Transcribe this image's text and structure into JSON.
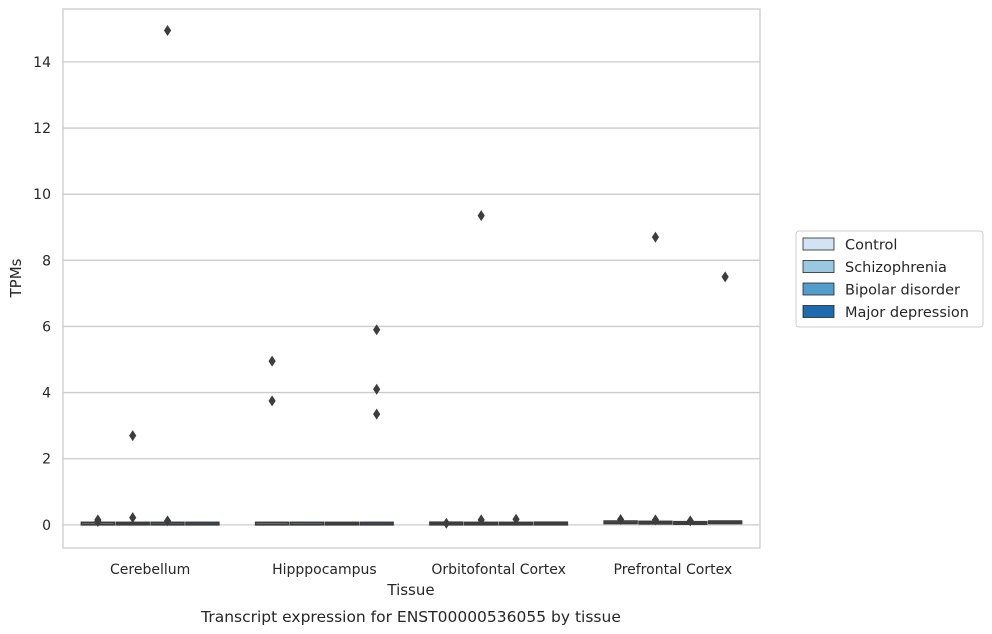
{
  "chart_data": {
    "type": "box",
    "title": "",
    "caption": "Transcript expression for ENST00000536055 by tissue",
    "xlabel": "Tissue",
    "ylabel": "TPMs",
    "ylim": [
      -0.7,
      15.6
    ],
    "yticks": [
      0,
      2,
      4,
      6,
      8,
      10,
      12,
      14
    ],
    "ytick_labels": [
      "0",
      "2",
      "4",
      "6",
      "8",
      "10",
      "12",
      "14"
    ],
    "grid": "horizontal",
    "legend_position": "right",
    "categories": [
      "Cerebellum",
      "Hipppocampus",
      "Orbitofontal Cortex",
      "Prefrontal Cortex"
    ],
    "series": [
      {
        "name": "Control",
        "color": "#d2e3f3",
        "boxes": [
          {
            "q1": 0.0,
            "median": 0.02,
            "q3": 0.05,
            "outliers": [
              0.15,
              0.1
            ]
          },
          {
            "q1": 0.0,
            "median": 0.02,
            "q3": 0.04,
            "outliers": [
              4.95,
              3.75
            ]
          },
          {
            "q1": 0.0,
            "median": 0.04,
            "q3": 0.08,
            "outliers": [
              0.05
            ]
          },
          {
            "q1": 0.04,
            "median": 0.07,
            "q3": 0.11,
            "outliers": [
              0.16
            ]
          }
        ]
      },
      {
        "name": "Schizophrenia",
        "color": "#9ac8e0",
        "boxes": [
          {
            "q1": 0.0,
            "median": 0.03,
            "q3": 0.06,
            "outliers": [
              2.7,
              0.22
            ]
          },
          {
            "q1": 0.0,
            "median": 0.02,
            "q3": 0.04,
            "outliers": []
          },
          {
            "q1": 0.0,
            "median": 0.03,
            "q3": 0.07,
            "outliers": [
              9.35,
              0.15
            ]
          },
          {
            "q1": 0.03,
            "median": 0.07,
            "q3": 0.1,
            "outliers": [
              8.7,
              0.15
            ]
          }
        ]
      },
      {
        "name": "Bipolar disorder",
        "color": "#529dcc",
        "boxes": [
          {
            "q1": 0.0,
            "median": 0.02,
            "q3": 0.04,
            "outliers": [
              14.95,
              0.12
            ]
          },
          {
            "q1": 0.0,
            "median": 0.03,
            "q3": 0.06,
            "outliers": []
          },
          {
            "q1": 0.0,
            "median": 0.03,
            "q3": 0.07,
            "outliers": [
              0.17
            ]
          },
          {
            "q1": 0.02,
            "median": 0.05,
            "q3": 0.08,
            "outliers": [
              0.12
            ]
          }
        ]
      },
      {
        "name": "Major depression",
        "color": "#1d6aaf",
        "boxes": [
          {
            "q1": 0.0,
            "median": 0.02,
            "q3": 0.04,
            "outliers": []
          },
          {
            "q1": 0.0,
            "median": 0.02,
            "q3": 0.04,
            "outliers": [
              5.9,
              4.1,
              3.35
            ]
          },
          {
            "q1": 0.0,
            "median": 0.04,
            "q3": 0.08,
            "outliers": []
          },
          {
            "q1": 0.04,
            "median": 0.07,
            "q3": 0.11,
            "outliers": [
              7.5
            ]
          }
        ]
      }
    ]
  }
}
